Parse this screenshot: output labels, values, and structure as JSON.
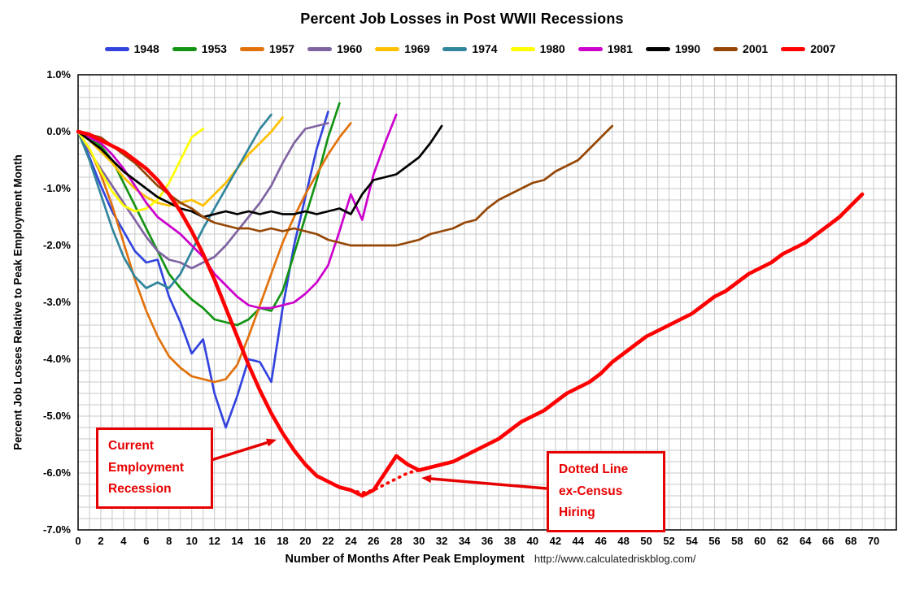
{
  "annotations": [
    {
      "lines": [
        "Current",
        "Employment",
        "Recession"
      ]
    },
    {
      "lines": [
        "Dotted Line",
        "ex-Census",
        "Hiring"
      ]
    }
  ],
  "chart_data": {
    "type": "line",
    "title": "Percent Job Losses in Post WWII Recessions",
    "xlabel": "Number of Months After Peak Employment",
    "ylabel": "Percent Job Losses Relative to Peak Employment Month",
    "source": "http://www.calculatedriskblog.com/",
    "xlim": [
      0,
      72
    ],
    "ylim": [
      -7,
      1
    ],
    "x_ticks": [
      0,
      2,
      4,
      6,
      8,
      10,
      12,
      14,
      16,
      18,
      20,
      22,
      24,
      26,
      28,
      30,
      32,
      34,
      36,
      38,
      40,
      42,
      44,
      46,
      48,
      50,
      52,
      54,
      56,
      58,
      60,
      62,
      64,
      66,
      68,
      70
    ],
    "y_ticks": [
      "1.0%",
      "0.0%",
      "-1.0%",
      "-2.0%",
      "-3.0%",
      "-4.0%",
      "-5.0%",
      "-6.0%",
      "-7.0%"
    ],
    "grid": "minor gridlines every 1 month (x) and 0.2% (y)",
    "legend_position": "top",
    "series": [
      {
        "name": "1948",
        "color": "#3344dd",
        "width": 2.7,
        "values": [
          0.0,
          -0.45,
          -0.95,
          -1.4,
          -1.75,
          -2.1,
          -2.3,
          -2.25,
          -2.9,
          -3.35,
          -3.9,
          -3.65,
          -4.6,
          -5.2,
          -4.65,
          -4.0,
          -4.05,
          -4.4,
          -3.1,
          -2.0,
          -1.15,
          -0.3,
          0.35
        ]
      },
      {
        "name": "1953",
        "color": "#149414",
        "width": 2.7,
        "values": [
          0.0,
          -0.1,
          -0.25,
          -0.5,
          -0.9,
          -1.3,
          -1.7,
          -2.1,
          -2.5,
          -2.75,
          -2.95,
          -3.1,
          -3.3,
          -3.35,
          -3.4,
          -3.3,
          -3.1,
          -3.15,
          -2.8,
          -2.15,
          -1.5,
          -0.85,
          -0.1,
          0.5
        ]
      },
      {
        "name": "1957",
        "color": "#e2720d",
        "width": 2.7,
        "values": [
          0.0,
          -0.3,
          -0.75,
          -1.3,
          -1.95,
          -2.6,
          -3.15,
          -3.6,
          -3.95,
          -4.15,
          -4.3,
          -4.35,
          -4.4,
          -4.35,
          -4.1,
          -3.6,
          -3.05,
          -2.5,
          -1.95,
          -1.5,
          -1.1,
          -0.75,
          -0.4,
          -0.1,
          0.15
        ]
      },
      {
        "name": "1960",
        "color": "#8064a2",
        "width": 2.7,
        "values": [
          0.0,
          -0.35,
          -0.65,
          -0.95,
          -1.25,
          -1.55,
          -1.85,
          -2.1,
          -2.25,
          -2.3,
          -2.4,
          -2.3,
          -2.2,
          -2.0,
          -1.75,
          -1.5,
          -1.25,
          -0.95,
          -0.55,
          -0.2,
          0.05,
          0.1,
          0.15
        ]
      },
      {
        "name": "1969",
        "color": "#ffc000",
        "width": 2.7,
        "values": [
          0.0,
          -0.15,
          -0.35,
          -0.55,
          -0.8,
          -1.0,
          -1.15,
          -1.25,
          -1.3,
          -1.25,
          -1.2,
          -1.3,
          -1.1,
          -0.9,
          -0.65,
          -0.4,
          -0.2,
          0.0,
          0.25
        ]
      },
      {
        "name": "1974",
        "color": "#31859c",
        "width": 2.7,
        "values": [
          0.0,
          -0.5,
          -1.1,
          -1.7,
          -2.2,
          -2.55,
          -2.75,
          -2.65,
          -2.75,
          -2.5,
          -2.1,
          -1.7,
          -1.35,
          -1.0,
          -0.65,
          -0.3,
          0.05,
          0.3
        ]
      },
      {
        "name": "1980",
        "color": "#ffff00",
        "width": 2.7,
        "values": [
          0.0,
          -0.3,
          -0.7,
          -1.05,
          -1.3,
          -1.4,
          -1.35,
          -1.2,
          -0.9,
          -0.5,
          -0.1,
          0.05
        ]
      },
      {
        "name": "1981",
        "color": "#cc00cc",
        "width": 2.7,
        "values": [
          0.0,
          -0.1,
          -0.2,
          -0.4,
          -0.65,
          -0.95,
          -1.25,
          -1.5,
          -1.65,
          -1.8,
          -2.0,
          -2.2,
          -2.5,
          -2.7,
          -2.9,
          -3.05,
          -3.1,
          -3.1,
          -3.05,
          -3.0,
          -2.85,
          -2.65,
          -2.35,
          -1.75,
          -1.1,
          -1.55,
          -0.75,
          -0.2,
          0.3
        ]
      },
      {
        "name": "1990",
        "color": "#000000",
        "width": 2.7,
        "values": [
          0.0,
          -0.15,
          -0.3,
          -0.5,
          -0.7,
          -0.85,
          -1.0,
          -1.15,
          -1.25,
          -1.35,
          -1.4,
          -1.5,
          -1.45,
          -1.4,
          -1.45,
          -1.4,
          -1.45,
          -1.4,
          -1.45,
          -1.45,
          -1.4,
          -1.45,
          -1.4,
          -1.35,
          -1.45,
          -1.1,
          -0.85,
          -0.8,
          -0.75,
          -0.6,
          -0.45,
          -0.2,
          0.1
        ]
      },
      {
        "name": "2001",
        "color": "#964706",
        "width": 2.7,
        "values": [
          0.0,
          -0.05,
          -0.1,
          -0.25,
          -0.4,
          -0.55,
          -0.75,
          -0.95,
          -1.1,
          -1.25,
          -1.35,
          -1.5,
          -1.6,
          -1.65,
          -1.7,
          -1.7,
          -1.75,
          -1.7,
          -1.75,
          -1.7,
          -1.75,
          -1.8,
          -1.9,
          -1.95,
          -2.0,
          -2.0,
          -2.0,
          -2.0,
          -2.0,
          -1.95,
          -1.9,
          -1.8,
          -1.75,
          -1.7,
          -1.6,
          -1.55,
          -1.35,
          -1.2,
          -1.1,
          -1.0,
          -0.9,
          -0.85,
          -0.7,
          -0.6,
          -0.5,
          -0.3,
          -0.1,
          0.1
        ]
      },
      {
        "name": "2007 ex-Census (dotted)",
        "color": "#ff0000",
        "width": 3.8,
        "style": "dotted",
        "legend": false,
        "x_start": 24,
        "values": [
          -6.3,
          -6.35,
          -6.3,
          -6.2,
          -6.1,
          -6.0,
          -5.95,
          -5.9
        ]
      },
      {
        "name": "2007",
        "color": "#ff0000",
        "width": 4.6,
        "values": [
          0.0,
          -0.05,
          -0.15,
          -0.25,
          -0.35,
          -0.5,
          -0.65,
          -0.85,
          -1.1,
          -1.4,
          -1.75,
          -2.15,
          -2.6,
          -3.1,
          -3.6,
          -4.1,
          -4.55,
          -4.95,
          -5.3,
          -5.6,
          -5.85,
          -6.05,
          -6.15,
          -6.25,
          -6.3,
          -6.4,
          -6.3,
          -6.0,
          -5.7,
          -5.85,
          -5.95,
          -5.9,
          -5.85,
          -5.8,
          -5.7,
          -5.6,
          -5.5,
          -5.4,
          -5.25,
          -5.1,
          -5.0,
          -4.9,
          -4.75,
          -4.6,
          -4.5,
          -4.4,
          -4.25,
          -4.05,
          -3.9,
          -3.75,
          -3.6,
          -3.5,
          -3.4,
          -3.3,
          -3.2,
          -3.05,
          -2.9,
          -2.8,
          -2.65,
          -2.5,
          -2.4,
          -2.3,
          -2.15,
          -2.05,
          -1.95,
          -1.8,
          -1.65,
          -1.5,
          -1.3,
          -1.1
        ]
      }
    ]
  }
}
